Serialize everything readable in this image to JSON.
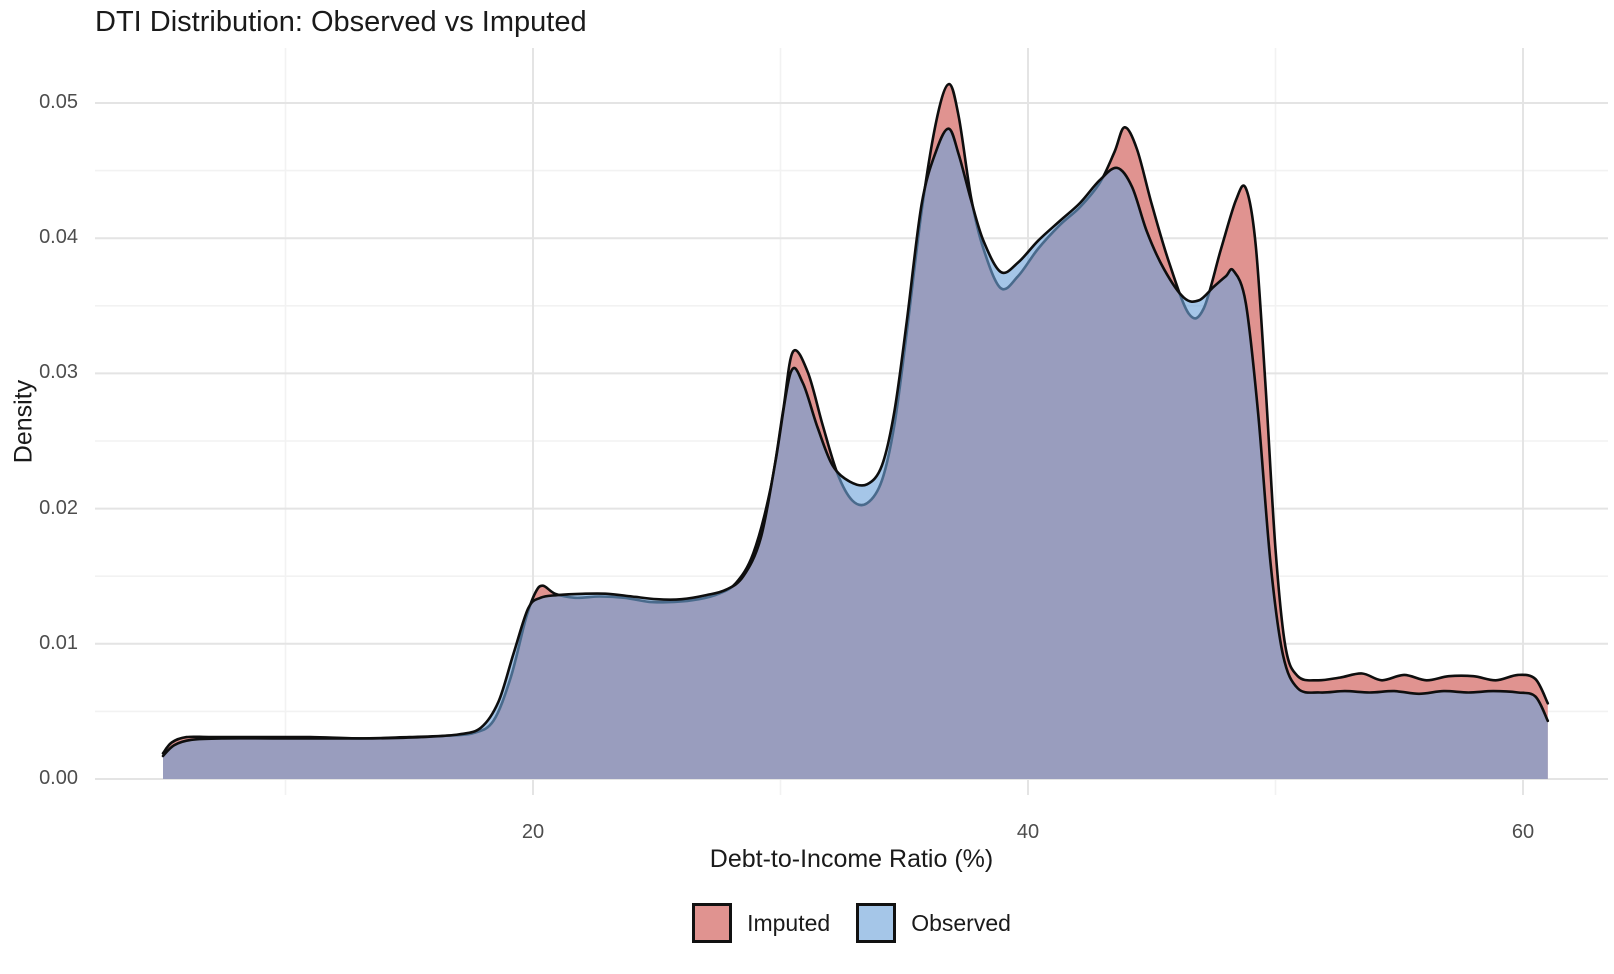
{
  "title": "DTI Distribution: Observed vs Imputed",
  "axes": {
    "x": {
      "label": "Debt-to-Income Ratio (%)",
      "ticks": [
        {
          "value": 20,
          "label": "20"
        },
        {
          "value": 40,
          "label": "40"
        },
        {
          "value": 60,
          "label": "60"
        }
      ],
      "minor": [
        10,
        30,
        50
      ]
    },
    "y": {
      "label": "Density",
      "ticks": [
        {
          "value": 0,
          "label": "0.00"
        },
        {
          "value": 0.01,
          "label": "0.01"
        },
        {
          "value": 0.02,
          "label": "0.02"
        },
        {
          "value": 0.03,
          "label": "0.03"
        },
        {
          "value": 0.04,
          "label": "0.04"
        },
        {
          "value": 0.05,
          "label": "0.05"
        }
      ],
      "minor": [
        0.005,
        0.015,
        0.025,
        0.035,
        0.045
      ]
    }
  },
  "legend": {
    "items": [
      {
        "label": "Imputed",
        "swatch": "imputed-swatch"
      },
      {
        "label": "Observed",
        "swatch": "observed-swatch"
      }
    ]
  },
  "colors": {
    "imputed_fill": "#E09390",
    "observed_fill_rgba": "rgba(110,163,218,0.62)",
    "observed_legend_fill": "#A5C6E8",
    "overlap_seen": "#8D97BE",
    "curve_stroke": "#0e0e0e",
    "grid_major": "#e4e4e4",
    "grid_minor": "#f2f2f2",
    "tick_text": "#4d4d4d",
    "title_text": "#1a1a1a"
  },
  "chart_data": {
    "type": "area",
    "title": "DTI Distribution: Observed vs Imputed",
    "xlabel": "Debt-to-Income Ratio (%)",
    "ylabel": "Density",
    "xlim": [
      5,
      61.3
    ],
    "ylim": [
      0,
      0.054
    ],
    "grid": "on",
    "legend_position": "bottom",
    "series": [
      {
        "name": "Imputed",
        "points": [
          [
            5.05,
            0.0019
          ],
          [
            5.4,
            0.0027
          ],
          [
            6.0,
            0.0031
          ],
          [
            7,
            0.0031
          ],
          [
            9,
            0.0031
          ],
          [
            11,
            0.0031
          ],
          [
            13,
            0.003
          ],
          [
            15,
            0.0031
          ],
          [
            16.5,
            0.0032
          ],
          [
            17.6,
            0.0034
          ],
          [
            18.4,
            0.0043
          ],
          [
            19.1,
            0.0075
          ],
          [
            19.7,
            0.0118
          ],
          [
            20.1,
            0.0138
          ],
          [
            20.4,
            0.0143
          ],
          [
            20.9,
            0.0137
          ],
          [
            21.7,
            0.0134
          ],
          [
            22.7,
            0.0135
          ],
          [
            23.7,
            0.0134
          ],
          [
            24.7,
            0.0131
          ],
          [
            25.7,
            0.0131
          ],
          [
            26.7,
            0.0133
          ],
          [
            27.5,
            0.0137
          ],
          [
            28.2,
            0.0145
          ],
          [
            28.9,
            0.0167
          ],
          [
            29.6,
            0.0215
          ],
          [
            30.1,
            0.0272
          ],
          [
            30.5,
            0.0316
          ],
          [
            31.1,
            0.0301
          ],
          [
            31.7,
            0.0262
          ],
          [
            32.3,
            0.0226
          ],
          [
            32.9,
            0.0206
          ],
          [
            33.5,
            0.0204
          ],
          [
            34.1,
            0.0221
          ],
          [
            34.6,
            0.0262
          ],
          [
            35.1,
            0.033
          ],
          [
            35.7,
            0.042
          ],
          [
            36.3,
            0.0487
          ],
          [
            36.8,
            0.0514
          ],
          [
            37.2,
            0.049
          ],
          [
            37.7,
            0.043
          ],
          [
            38.2,
            0.0392
          ],
          [
            38.9,
            0.0363
          ],
          [
            39.6,
            0.0372
          ],
          [
            40.4,
            0.0392
          ],
          [
            41.3,
            0.041
          ],
          [
            42.1,
            0.0423
          ],
          [
            42.9,
            0.0441
          ],
          [
            43.5,
            0.0464
          ],
          [
            43.9,
            0.0482
          ],
          [
            44.4,
            0.0466
          ],
          [
            45.0,
            0.0425
          ],
          [
            45.7,
            0.0382
          ],
          [
            46.5,
            0.0344
          ],
          [
            47.1,
            0.0348
          ],
          [
            47.8,
            0.0392
          ],
          [
            48.4,
            0.0428
          ],
          [
            48.8,
            0.0437
          ],
          [
            49.2,
            0.0395
          ],
          [
            49.6,
            0.029
          ],
          [
            50.0,
            0.017
          ],
          [
            50.4,
            0.0098
          ],
          [
            50.9,
            0.0076
          ],
          [
            51.7,
            0.0073
          ],
          [
            52.6,
            0.0075
          ],
          [
            53.5,
            0.0078
          ],
          [
            54.3,
            0.0073
          ],
          [
            55.2,
            0.0077
          ],
          [
            56.1,
            0.0073
          ],
          [
            57.0,
            0.0076
          ],
          [
            58.0,
            0.0076
          ],
          [
            58.9,
            0.0073
          ],
          [
            59.8,
            0.0077
          ],
          [
            60.5,
            0.0074
          ],
          [
            61.0,
            0.0056
          ]
        ]
      },
      {
        "name": "Observed",
        "points": [
          [
            5.05,
            0.0017
          ],
          [
            5.5,
            0.0025
          ],
          [
            6.2,
            0.0029
          ],
          [
            7.5,
            0.003
          ],
          [
            9.5,
            0.003
          ],
          [
            11.5,
            0.003
          ],
          [
            13.5,
            0.003
          ],
          [
            15.5,
            0.0031
          ],
          [
            17.0,
            0.0033
          ],
          [
            17.9,
            0.0038
          ],
          [
            18.6,
            0.0057
          ],
          [
            19.2,
            0.0092
          ],
          [
            19.8,
            0.0126
          ],
          [
            20.3,
            0.0134
          ],
          [
            21.0,
            0.0136
          ],
          [
            22.0,
            0.0137
          ],
          [
            23.0,
            0.0137
          ],
          [
            24.0,
            0.0135
          ],
          [
            25.0,
            0.0133
          ],
          [
            26.0,
            0.0133
          ],
          [
            27.0,
            0.0136
          ],
          [
            27.8,
            0.014
          ],
          [
            28.5,
            0.015
          ],
          [
            29.2,
            0.0178
          ],
          [
            29.8,
            0.0235
          ],
          [
            30.4,
            0.03
          ],
          [
            30.9,
            0.0293
          ],
          [
            31.5,
            0.026
          ],
          [
            32.1,
            0.0232
          ],
          [
            32.8,
            0.022
          ],
          [
            33.5,
            0.0218
          ],
          [
            34.1,
            0.0232
          ],
          [
            34.6,
            0.0272
          ],
          [
            35.1,
            0.0338
          ],
          [
            35.7,
            0.0425
          ],
          [
            36.3,
            0.0465
          ],
          [
            36.8,
            0.0481
          ],
          [
            37.2,
            0.0462
          ],
          [
            37.7,
            0.0428
          ],
          [
            38.2,
            0.0398
          ],
          [
            38.9,
            0.0375
          ],
          [
            39.6,
            0.0382
          ],
          [
            40.4,
            0.0398
          ],
          [
            41.3,
            0.0413
          ],
          [
            42.1,
            0.0426
          ],
          [
            42.9,
            0.0443
          ],
          [
            43.6,
            0.0452
          ],
          [
            44.2,
            0.0438
          ],
          [
            44.8,
            0.0405
          ],
          [
            45.5,
            0.0377
          ],
          [
            46.3,
            0.0356
          ],
          [
            46.9,
            0.0354
          ],
          [
            47.5,
            0.0364
          ],
          [
            48.0,
            0.0372
          ],
          [
            48.3,
            0.0376
          ],
          [
            48.8,
            0.0352
          ],
          [
            49.3,
            0.027
          ],
          [
            49.8,
            0.016
          ],
          [
            50.3,
            0.0092
          ],
          [
            50.9,
            0.0067
          ],
          [
            51.8,
            0.0064
          ],
          [
            52.8,
            0.0065
          ],
          [
            53.8,
            0.0064
          ],
          [
            54.8,
            0.0065
          ],
          [
            55.8,
            0.0063
          ],
          [
            56.8,
            0.0065
          ],
          [
            57.8,
            0.0064
          ],
          [
            58.8,
            0.0065
          ],
          [
            59.8,
            0.0064
          ],
          [
            60.5,
            0.0061
          ],
          [
            61.0,
            0.0043
          ]
        ]
      }
    ]
  }
}
